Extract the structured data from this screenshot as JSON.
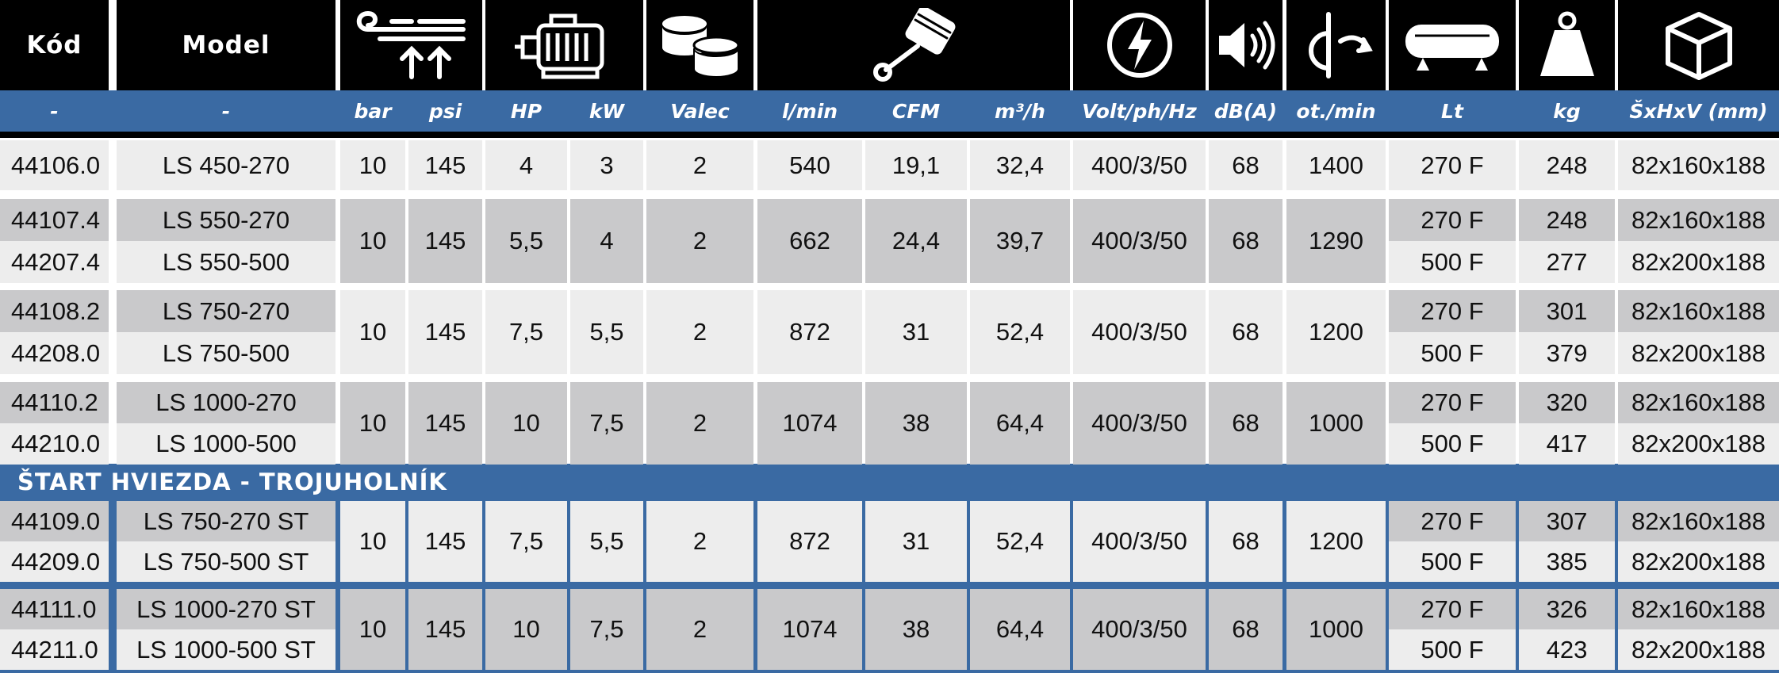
{
  "header": {
    "kod": "Kód",
    "model": "Model",
    "icons": [
      "air-pressure-icon",
      "motor-icon",
      "cylinders-icon",
      "piston-icon",
      "voltage-icon",
      "speaker-icon",
      "rotation-icon",
      "tank-icon",
      "weight-icon",
      "box-icon"
    ]
  },
  "units": [
    "-",
    "-",
    "bar",
    "psi",
    "HP",
    "kW",
    "Valec",
    "l/min",
    "CFM",
    "m³/h",
    "Volt/ph/Hz",
    "dB(A)",
    "ot./min",
    "Lt",
    "kg",
    "ŠxHxV (mm)"
  ],
  "groups": [
    {
      "codes": [
        "44106.0"
      ],
      "models": [
        "LS 450-270"
      ],
      "bar": "10",
      "psi": "145",
      "hp": "4",
      "kw": "3",
      "valec": "2",
      "lmin": "540",
      "cfm": "19,1",
      "m3h": "32,4",
      "volt": "400/3/50",
      "db": "68",
      "ot": "1400",
      "lt": [
        "270 F"
      ],
      "kg": [
        "248"
      ],
      "dim": [
        "82x160x188"
      ]
    },
    {
      "codes": [
        "44107.4",
        "44207.4"
      ],
      "models": [
        "LS 550-270",
        "LS 550-500"
      ],
      "bar": "10",
      "psi": "145",
      "hp": "5,5",
      "kw": "4",
      "valec": "2",
      "lmin": "662",
      "cfm": "24,4",
      "m3h": "39,7",
      "volt": "400/3/50",
      "db": "68",
      "ot": "1290",
      "lt": [
        "270 F",
        "500 F"
      ],
      "kg": [
        "248",
        "277"
      ],
      "dim": [
        "82x160x188",
        "82x200x188"
      ]
    },
    {
      "codes": [
        "44108.2",
        "44208.0"
      ],
      "models": [
        "LS 750-270",
        "LS 750-500"
      ],
      "bar": "10",
      "psi": "145",
      "hp": "7,5",
      "kw": "5,5",
      "valec": "2",
      "lmin": "872",
      "cfm": "31",
      "m3h": "52,4",
      "volt": "400/3/50",
      "db": "68",
      "ot": "1200",
      "lt": [
        "270 F",
        "500 F"
      ],
      "kg": [
        "301",
        "379"
      ],
      "dim": [
        "82x160x188",
        "82x200x188"
      ]
    },
    {
      "codes": [
        "44110.2",
        "44210.0"
      ],
      "models": [
        "LS 1000-270",
        "LS 1000-500"
      ],
      "bar": "10",
      "psi": "145",
      "hp": "10",
      "kw": "7,5",
      "valec": "2",
      "lmin": "1074",
      "cfm": "38",
      "m3h": "64,4",
      "volt": "400/3/50",
      "db": "68",
      "ot": "1000",
      "lt": [
        "270 F",
        "500 F"
      ],
      "kg": [
        "320",
        "417"
      ],
      "dim": [
        "82x160x188",
        "82x200x188"
      ]
    },
    {
      "codes": [
        "44109.0",
        "44209.0"
      ],
      "models": [
        "LS 750-270 ST",
        "LS 750-500 ST"
      ],
      "bar": "10",
      "psi": "145",
      "hp": "7,5",
      "kw": "5,5",
      "valec": "2",
      "lmin": "872",
      "cfm": "31",
      "m3h": "52,4",
      "volt": "400/3/50",
      "db": "68",
      "ot": "1200",
      "lt": [
        "270 F",
        "500 F"
      ],
      "kg": [
        "307",
        "385"
      ],
      "dim": [
        "82x160x188",
        "82x200x188"
      ]
    },
    {
      "codes": [
        "44111.0",
        "44211.0"
      ],
      "models": [
        "LS 1000-270 ST",
        "LS 1000-500 ST"
      ],
      "bar": "10",
      "psi": "145",
      "hp": "10",
      "kw": "7,5",
      "valec": "2",
      "lmin": "1074",
      "cfm": "38",
      "m3h": "64,4",
      "volt": "400/3/50",
      "db": "68",
      "ot": "1000",
      "lt": [
        "270 F",
        "500 F"
      ],
      "kg": [
        "326",
        "423"
      ],
      "dim": [
        "82x160x188",
        "82x200x188"
      ]
    }
  ],
  "section": {
    "title": "ŠTART HVIEZDA - TROJUHOLNÍK"
  },
  "colors": {
    "header_bg": "#000000",
    "unit_band": "#3a6aa3",
    "row_light": "#ededed",
    "row_dark": "#c9c9cb",
    "text": "#111111"
  }
}
